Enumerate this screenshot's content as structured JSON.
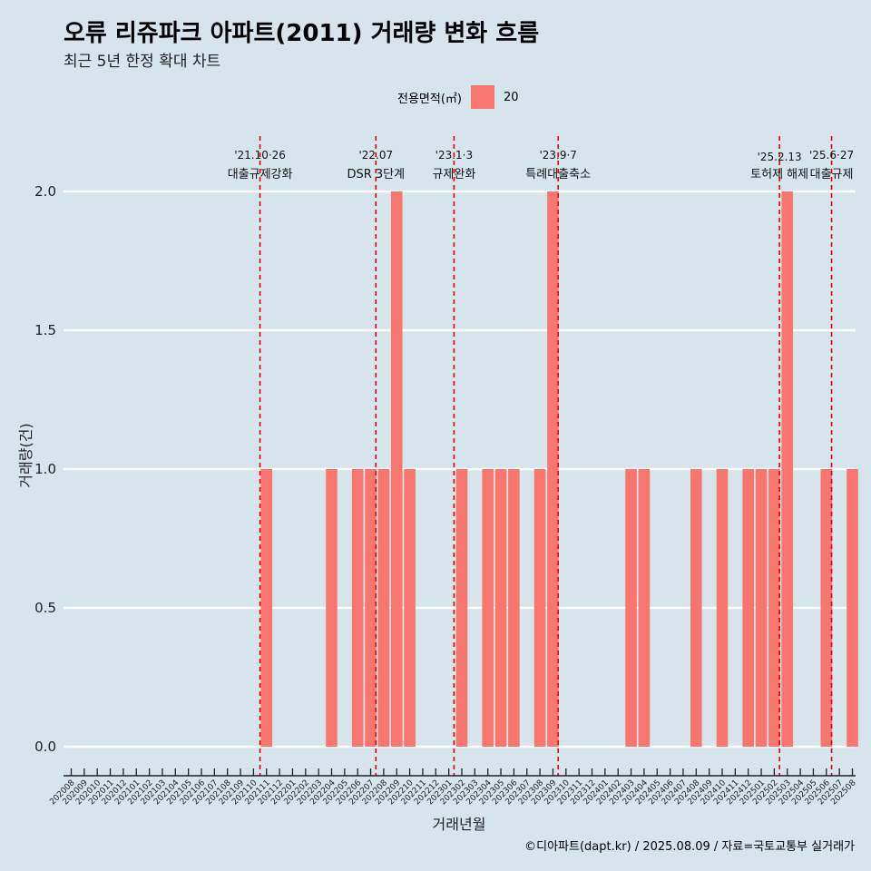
{
  "title": "오류 리쥬파크 아파트(2011) 거래량 변화 흐름",
  "subtitle": "최근 5년 한정 확대 차트",
  "legend": {
    "title": "전용면적(㎡)",
    "items": [
      {
        "label": "20",
        "color": "#f8766d"
      }
    ]
  },
  "caption": "©디아파트(dapt.kr) / 2025.08.09 / 자료=국토교통부 실거래가",
  "chart_data": {
    "type": "bar",
    "xlabel": "거래년월",
    "ylabel": "거래량(건)",
    "ylim": [
      -0.08,
      2.2
    ],
    "yticks": [
      "0.0",
      "0.5",
      "1.0",
      "1.5",
      "2.0"
    ],
    "grid": "horizontal",
    "legend_position": "top",
    "categories": [
      "202008",
      "202009",
      "202010",
      "202011",
      "202012",
      "202101",
      "202102",
      "202103",
      "202104",
      "202105",
      "202106",
      "202107",
      "202108",
      "202109",
      "202110",
      "202111",
      "202112",
      "202201",
      "202202",
      "202203",
      "202204",
      "202205",
      "202206",
      "202207",
      "202208",
      "202209",
      "202210",
      "202211",
      "202212",
      "202301",
      "202302",
      "202303",
      "202304",
      "202305",
      "202306",
      "202307",
      "202308",
      "202309",
      "202310",
      "202311",
      "202312",
      "202401",
      "202402",
      "202403",
      "202404",
      "202405",
      "202406",
      "202407",
      "202408",
      "202409",
      "202410",
      "202411",
      "202412",
      "202501",
      "202502",
      "202503",
      "202504",
      "202505",
      "202506",
      "202507",
      "202508"
    ],
    "series": [
      {
        "name": "20",
        "color": "#f8766d",
        "values": [
          0,
          0,
          0,
          0,
          0,
          0,
          0,
          0,
          0,
          0,
          0,
          0,
          0,
          0,
          0,
          1,
          0,
          0,
          0,
          0,
          1,
          0,
          1,
          1,
          1,
          2,
          1,
          0,
          0,
          0,
          1,
          0,
          1,
          1,
          1,
          0,
          1,
          2,
          0,
          0,
          0,
          0,
          0,
          1,
          1,
          0,
          0,
          0,
          1,
          0,
          1,
          0,
          1,
          1,
          1,
          2,
          0,
          0,
          1,
          0,
          1
        ]
      }
    ],
    "events": [
      {
        "date_label": "'21.10·26",
        "name": "대출규제강화",
        "x": 14.5
      },
      {
        "date_label": "'22.07",
        "name": "DSR 3단계",
        "x": 23.4
      },
      {
        "date_label": "'23.1·3",
        "name": "규제완화",
        "x": 29.4
      },
      {
        "date_label": "'23.9·7",
        "name": "특례대출축소",
        "x": 37.4
      },
      {
        "date_label": "'25.2.13",
        "name": "토허제 해제",
        "x": 54.4
      },
      {
        "date_label": "'25.6·27",
        "name": "대출규제",
        "x": 58.4
      }
    ]
  }
}
